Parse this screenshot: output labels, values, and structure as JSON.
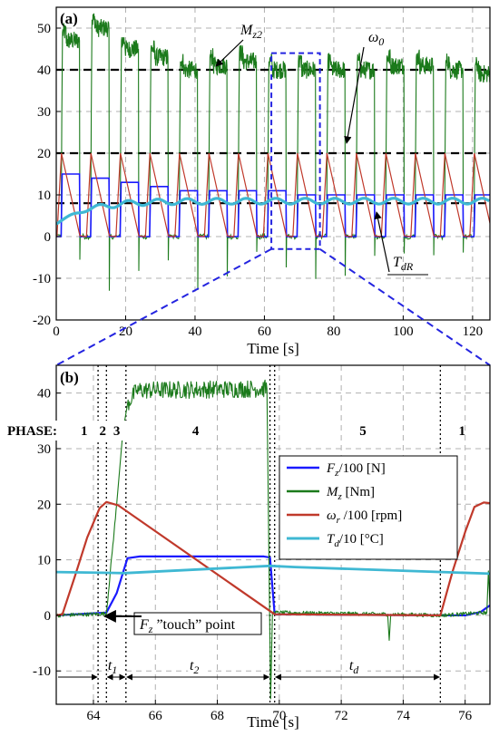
{
  "chart_data": [
    {
      "panel": "(a)",
      "type": "line",
      "xlabel": "Time [s]",
      "xlim": [
        0,
        125
      ],
      "ylim": [
        -20,
        55
      ],
      "xticks": [
        "0",
        "20",
        "40",
        "60",
        "80",
        "100",
        "120"
      ],
      "yticks": [
        "-20",
        "-10",
        "0",
        "10",
        "20",
        "30",
        "40",
        "50"
      ],
      "grid": true,
      "reference_lines": [
        40,
        20,
        8
      ],
      "zoom_window": {
        "x": [
          62,
          76
        ],
        "y": [
          -3,
          44
        ]
      },
      "annotations": {
        "mz2": "M",
        "mz2_sub": "z2",
        "omega0": "ω",
        "omega0_sub": "0",
        "tdr": "T",
        "tdr_sub": "dR"
      },
      "cycles": {
        "start_times": [
          0,
          8.5,
          17,
          25.5,
          34,
          42.5,
          51,
          59.5,
          68,
          76.5,
          85,
          93.5,
          102,
          110.5,
          119
        ],
        "period_s": 8.5,
        "torque_plateaus": [
          47,
          50,
          45,
          43,
          40,
          41,
          42,
          40,
          40,
          40,
          40,
          41,
          41,
          40,
          39
        ],
        "force_plateaus_div100": [
          15,
          14,
          13,
          12,
          11,
          11,
          11,
          11,
          10,
          10,
          10,
          10,
          10,
          10,
          10
        ],
        "speed_peak_div100": 20,
        "temperature_start_div10": 3,
        "temperature_steady_div10": 8.5
      }
    },
    {
      "panel": "(b)",
      "type": "line",
      "xlabel": "Time [s]",
      "xlim": [
        62.8,
        76.8
      ],
      "ylim": [
        -16,
        45
      ],
      "xticks": [
        "64",
        "66",
        "68",
        "70",
        "72",
        "74",
        "76"
      ],
      "yticks": [
        "-10",
        "0",
        "10",
        "20",
        "30",
        "40"
      ],
      "grid": true,
      "phase_prefix": "PHASE:",
      "phases": [
        {
          "label": "1",
          "x": 63.7
        },
        {
          "label": "2",
          "x": 64.3
        },
        {
          "label": "3",
          "x": 64.75
        },
        {
          "label": "4",
          "x": 67.3
        },
        {
          "label": "5",
          "x": 72.7
        },
        {
          "label": "1",
          "x": 75.9
        }
      ],
      "phase_boundaries": [
        64.15,
        64.42,
        65.05,
        69.7,
        69.85,
        75.2
      ],
      "intervals": [
        {
          "label": "t",
          "sub": "1",
          "from": 64.42,
          "to": 65.05
        },
        {
          "label": "t",
          "sub": "2",
          "from": 65.05,
          "to": 69.7
        },
        {
          "label": "t",
          "sub": "d",
          "from": 69.85,
          "to": 75.2
        }
      ],
      "touch_annotation": {
        "prefix": "F",
        "sub": "z",
        "text": " ”touch” point",
        "point": [
          64.42,
          0.5
        ]
      },
      "series": [
        {
          "name": "F",
          "name_sub": "z",
          "name_rest": "/100 [N]",
          "color": "#1a1aff",
          "points": [
            [
              62.8,
              0
            ],
            [
              64.42,
              0.5
            ],
            [
              64.75,
              4
            ],
            [
              65.1,
              10.3
            ],
            [
              65.5,
              10.6
            ],
            [
              69.5,
              10.6
            ],
            [
              69.7,
              10.4
            ],
            [
              69.85,
              0.2
            ],
            [
              75.2,
              0
            ],
            [
              76.0,
              0
            ],
            [
              76.5,
              0.6
            ],
            [
              76.8,
              1.8
            ]
          ]
        },
        {
          "name": "M",
          "name_sub": "z",
          "name_rest": "  [Nm]",
          "color": "#1b7a1b",
          "points": [
            [
              62.8,
              0
            ],
            [
              64.42,
              0.3
            ],
            [
              64.75,
              20
            ],
            [
              64.95,
              33
            ],
            [
              65.1,
              38
            ],
            [
              65.4,
              40.5
            ],
            [
              69.6,
              40.8
            ],
            [
              69.72,
              -15
            ],
            [
              69.78,
              0.5
            ],
            [
              73.5,
              0.2
            ],
            [
              73.55,
              -4.5
            ],
            [
              73.6,
              0.2
            ],
            [
              75.2,
              0
            ],
            [
              76.7,
              0.5
            ],
            [
              76.75,
              8
            ],
            [
              76.8,
              2
            ]
          ]
        },
        {
          "name": "ω",
          "name_sub": "r",
          "name_rest": " /100 [rpm]",
          "color": "#c0392b",
          "points": [
            [
              62.8,
              0
            ],
            [
              63.0,
              0.2
            ],
            [
              63.4,
              7
            ],
            [
              63.8,
              14
            ],
            [
              64.2,
              19.3
            ],
            [
              64.42,
              20.4
            ],
            [
              64.8,
              19.8
            ],
            [
              69.85,
              0.2
            ],
            [
              75.2,
              0
            ],
            [
              75.6,
              8
            ],
            [
              76.0,
              15
            ],
            [
              76.3,
              19.5
            ],
            [
              76.6,
              20.3
            ],
            [
              76.8,
              20.2
            ]
          ]
        },
        {
          "name": "T",
          "name_sub": "d",
          "name_rest": "/10  [°C]",
          "color": "#3fb8d3",
          "points": [
            [
              62.8,
              7.8
            ],
            [
              65.0,
              7.6
            ],
            [
              69.7,
              8.9
            ],
            [
              70.5,
              8.7
            ],
            [
              76.8,
              7.5
            ]
          ]
        }
      ]
    }
  ],
  "colors": {
    "force": "#1a1aff",
    "torque": "#1b7a1b",
    "speed": "#c0392b",
    "temperature": "#3fb8d3",
    "zoom_box": "#2424e0"
  }
}
